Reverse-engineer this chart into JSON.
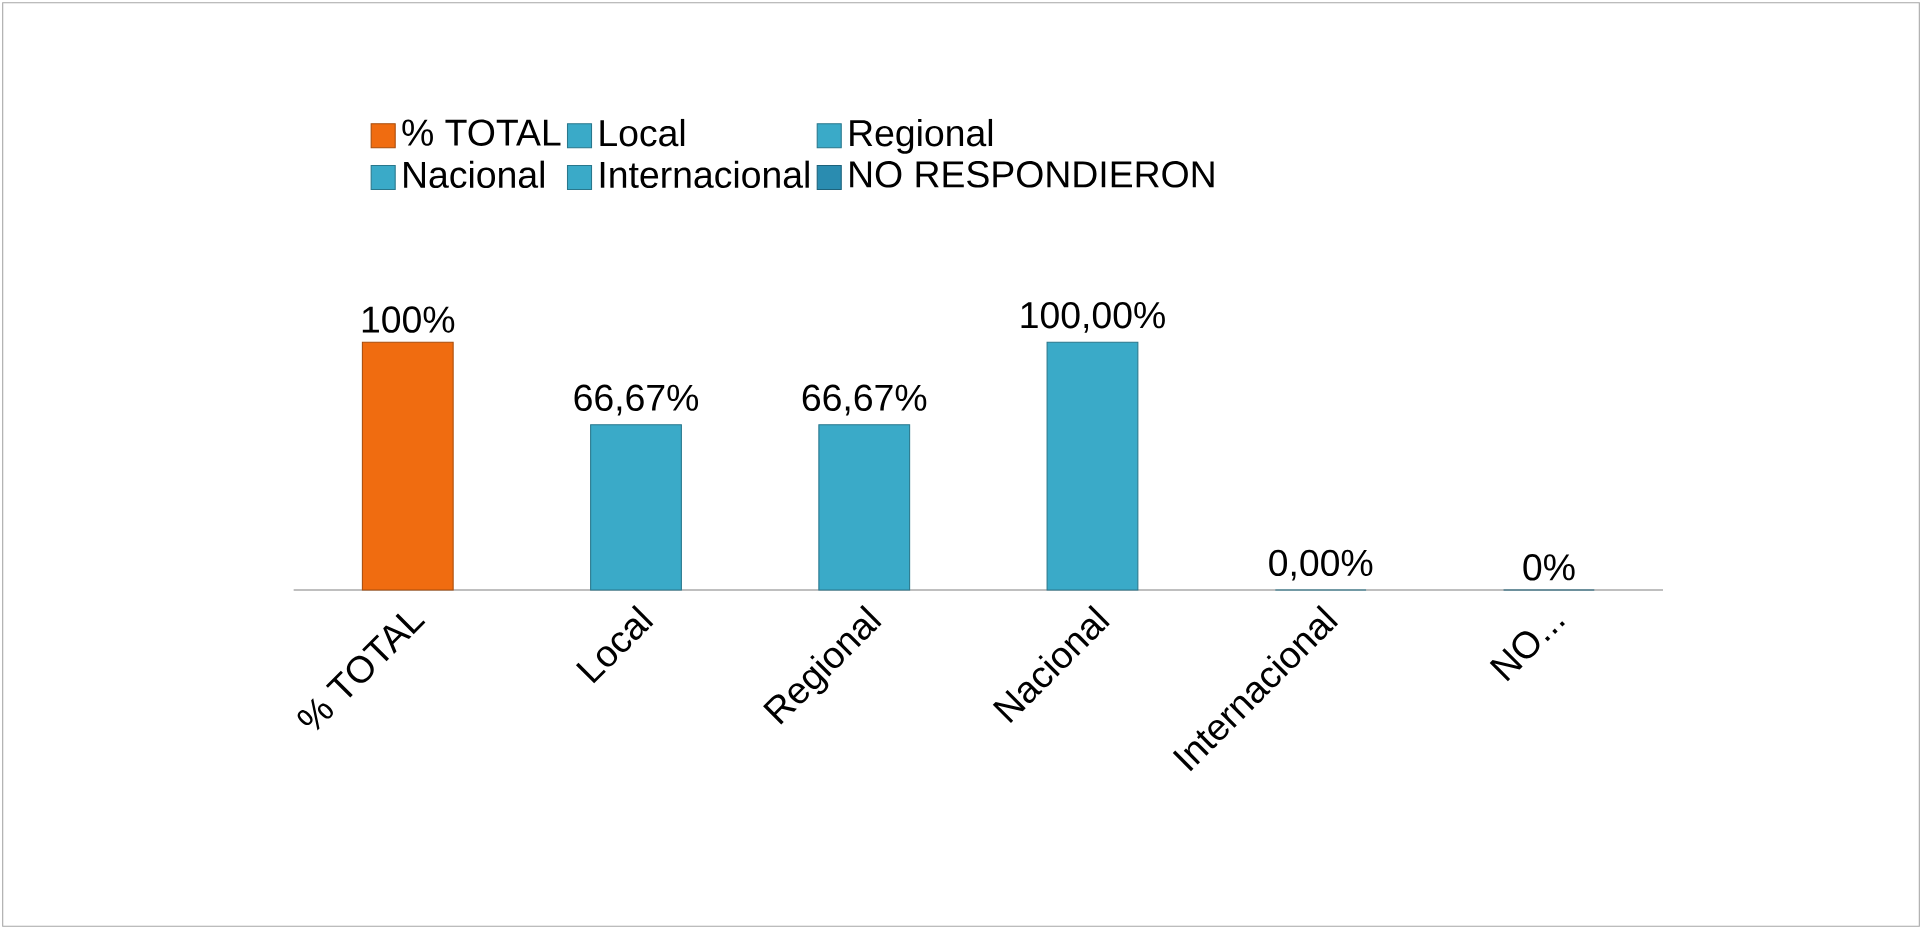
{
  "chart_data": {
    "type": "bar",
    "categories": [
      "% TOTAL",
      "Local",
      "Regional",
      "Nacional",
      "Internacional",
      "NO..."
    ],
    "series": [
      {
        "name": "% TOTAL",
        "color": "#f06c10",
        "values": [
          100,
          null,
          null,
          null,
          null,
          null
        ],
        "value_labels": [
          "100%",
          null,
          null,
          null,
          null,
          null
        ]
      },
      {
        "name": "Local",
        "color": "#3aaac8",
        "values": [
          null,
          66.67,
          null,
          null,
          null,
          null
        ],
        "value_labels": [
          null,
          "66,67%",
          null,
          null,
          null,
          null
        ]
      },
      {
        "name": "Regional",
        "color": "#3aaac8",
        "values": [
          null,
          null,
          66.67,
          null,
          null,
          null
        ],
        "value_labels": [
          null,
          null,
          "66,67%",
          null,
          null,
          null
        ]
      },
      {
        "name": "Nacional",
        "color": "#3aaac8",
        "values": [
          null,
          null,
          null,
          100,
          null,
          null
        ],
        "value_labels": [
          null,
          null,
          null,
          "100,00%",
          null,
          null
        ]
      },
      {
        "name": "Internacional",
        "color": "#3aaac8",
        "values": [
          null,
          null,
          null,
          null,
          0,
          null
        ],
        "value_labels": [
          null,
          null,
          null,
          null,
          "0,00%",
          null
        ]
      },
      {
        "name": "NO RESPONDIERON",
        "color": "#2a8cb0",
        "values": [
          null,
          null,
          null,
          null,
          null,
          0
        ],
        "value_labels": [
          null,
          null,
          null,
          null,
          null,
          "0%"
        ]
      }
    ],
    "legend": "top"
  }
}
